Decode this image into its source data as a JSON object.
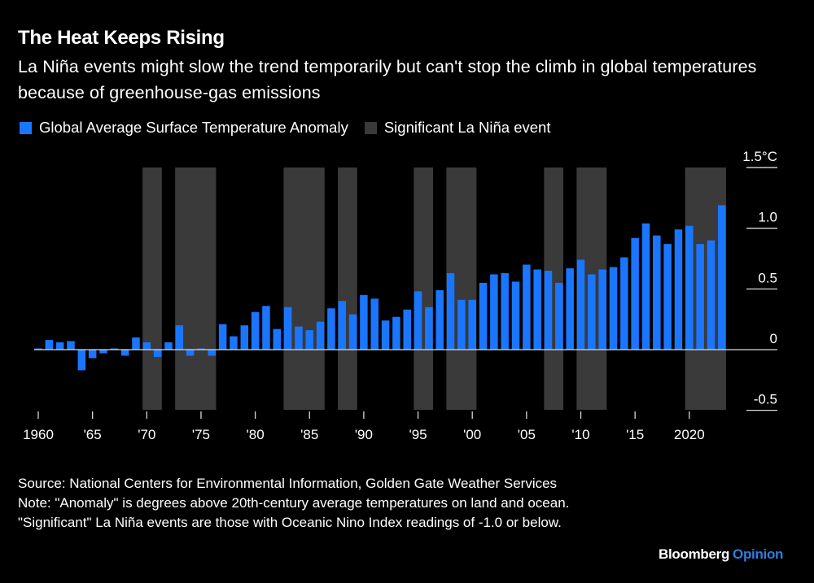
{
  "header": {
    "title": "The Heat Keeps Rising",
    "subtitle": "La Niña events might slow the trend temporarily but can't stop the climb in global temperatures because of greenhouse-gas emissions"
  },
  "colors": {
    "background": "#000000",
    "bar": "#1a76ff",
    "band": "#3a3a3a",
    "axis": "#d9d9d9",
    "brand_accent": "#2f7de1"
  },
  "legend": [
    {
      "label": "Global Average Surface Temperature Anomaly",
      "color": "#1a76ff"
    },
    {
      "label": "Significant La Niña event",
      "color": "#3a3a3a"
    }
  ],
  "footer": {
    "source": "Source: National Centers for Environmental Information, Golden Gate Weather Services",
    "note": "Note: \"Anomaly\" is degrees above 20th-century average temperatures on land and ocean. \"Significant\" La Niña events are those with Oceanic Nino Index readings of -1.0 or below."
  },
  "brand": {
    "name": "Bloomberg",
    "section": "Opinion"
  },
  "chart_data": {
    "type": "bar",
    "title": "The Heat Keeps Rising",
    "xlabel": "",
    "ylabel": "°C",
    "ylim": [
      -0.5,
      1.5
    ],
    "y_ticks": [
      {
        "value": 1.5,
        "label": "1.5°C"
      },
      {
        "value": 1.0,
        "label": "1.0"
      },
      {
        "value": 0.5,
        "label": "0.5"
      },
      {
        "value": 0,
        "label": "0"
      },
      {
        "value": -0.5,
        "label": "-0.5"
      }
    ],
    "x_ticks": [
      {
        "year": 1960,
        "label": "1960"
      },
      {
        "year": 1965,
        "label": "'65"
      },
      {
        "year": 1970,
        "label": "'70"
      },
      {
        "year": 1975,
        "label": "'75"
      },
      {
        "year": 1980,
        "label": "'80"
      },
      {
        "year": 1985,
        "label": "'85"
      },
      {
        "year": 1990,
        "label": "'90"
      },
      {
        "year": 1995,
        "label": "'95"
      },
      {
        "year": 2000,
        "label": "'00"
      },
      {
        "year": 2005,
        "label": "'05"
      },
      {
        "year": 2010,
        "label": "'10"
      },
      {
        "year": 2015,
        "label": "'15"
      },
      {
        "year": 2020,
        "label": "2020"
      }
    ],
    "grid": false,
    "legend_position": "top-left",
    "series": [
      {
        "name": "Global Average Surface Temperature Anomaly",
        "x": [
          1960,
          1961,
          1962,
          1963,
          1964,
          1965,
          1966,
          1967,
          1968,
          1969,
          1970,
          1971,
          1972,
          1973,
          1974,
          1975,
          1976,
          1977,
          1978,
          1979,
          1980,
          1981,
          1982,
          1983,
          1984,
          1985,
          1986,
          1987,
          1988,
          1989,
          1990,
          1991,
          1992,
          1993,
          1994,
          1995,
          1996,
          1997,
          1998,
          1999,
          2000,
          2001,
          2002,
          2003,
          2004,
          2005,
          2006,
          2007,
          2008,
          2009,
          2010,
          2011,
          2012,
          2013,
          2014,
          2015,
          2016,
          2017,
          2018,
          2019,
          2020,
          2021,
          2022,
          2023
        ],
        "values": [
          0.01,
          0.08,
          0.06,
          0.07,
          -0.17,
          -0.07,
          -0.03,
          0.01,
          -0.05,
          0.1,
          0.06,
          -0.06,
          0.06,
          0.2,
          -0.05,
          0.01,
          -0.05,
          0.21,
          0.11,
          0.2,
          0.31,
          0.36,
          0.17,
          0.35,
          0.19,
          0.16,
          0.23,
          0.34,
          0.4,
          0.29,
          0.45,
          0.42,
          0.24,
          0.27,
          0.33,
          0.48,
          0.35,
          0.49,
          0.63,
          0.41,
          0.41,
          0.55,
          0.62,
          0.63,
          0.56,
          0.7,
          0.66,
          0.65,
          0.55,
          0.67,
          0.74,
          0.62,
          0.66,
          0.68,
          0.76,
          0.92,
          1.04,
          0.94,
          0.87,
          0.99,
          1.02,
          0.87,
          0.9,
          1.19
        ]
      }
    ],
    "la_nina_events": [
      {
        "start": 1970,
        "end": 1971
      },
      {
        "start": 1973,
        "end": 1976
      },
      {
        "start": 1983,
        "end": 1986
      },
      {
        "start": 1988,
        "end": 1989
      },
      {
        "start": 1995,
        "end": 1996
      },
      {
        "start": 1998,
        "end": 2000
      },
      {
        "start": 2007,
        "end": 2008
      },
      {
        "start": 2010,
        "end": 2012
      },
      {
        "start": 2020,
        "end": 2023
      }
    ]
  }
}
